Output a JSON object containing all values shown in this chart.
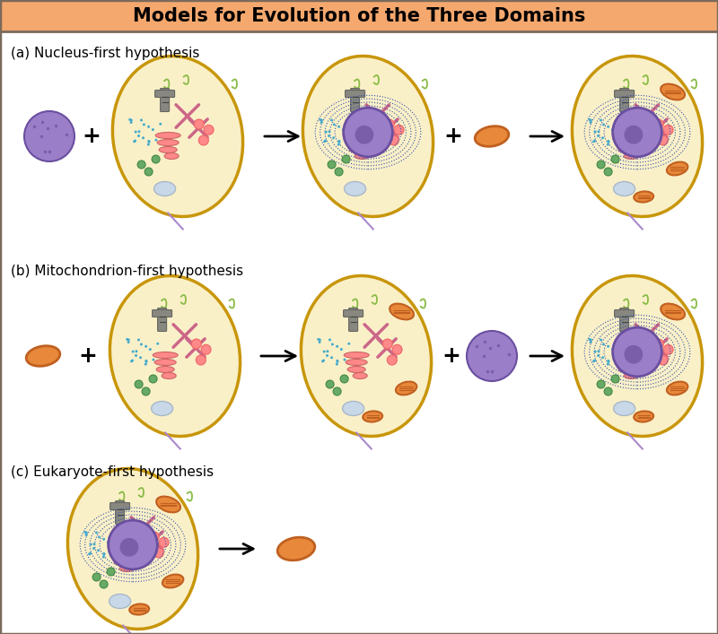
{
  "title": "Models for Evolution of the Three Domains",
  "title_bg": "#F5A86E",
  "title_color": "#000000",
  "title_fontsize": 15,
  "bg_color": "#FFFFFF",
  "border_color": "#7A6A5A",
  "section_labels": [
    "(a) Nucleus-first hypothesis",
    "(b) Mitochondrion-first hypothesis",
    "(c) Eukaryote-first hypothesis"
  ],
  "cell_fill": "#FAF0C8",
  "cell_border": "#C8960A",
  "nucleus_fill": "#9B7EC8",
  "nucleus_border": "#6A4FA0",
  "mito_fill": "#E8883A",
  "mito_border": "#C06020",
  "er_color": "#4488CC",
  "golgi_color": "#FF8888",
  "ribosome_color": "#44AACC",
  "chromatin_color": "#CC6688",
  "vacuole_fill": "#C8D8E8",
  "green_dots": "#66AA66",
  "flagella_color": "#AA88CC",
  "green_lines": "#88BB44",
  "gray_organelle": "#888880"
}
